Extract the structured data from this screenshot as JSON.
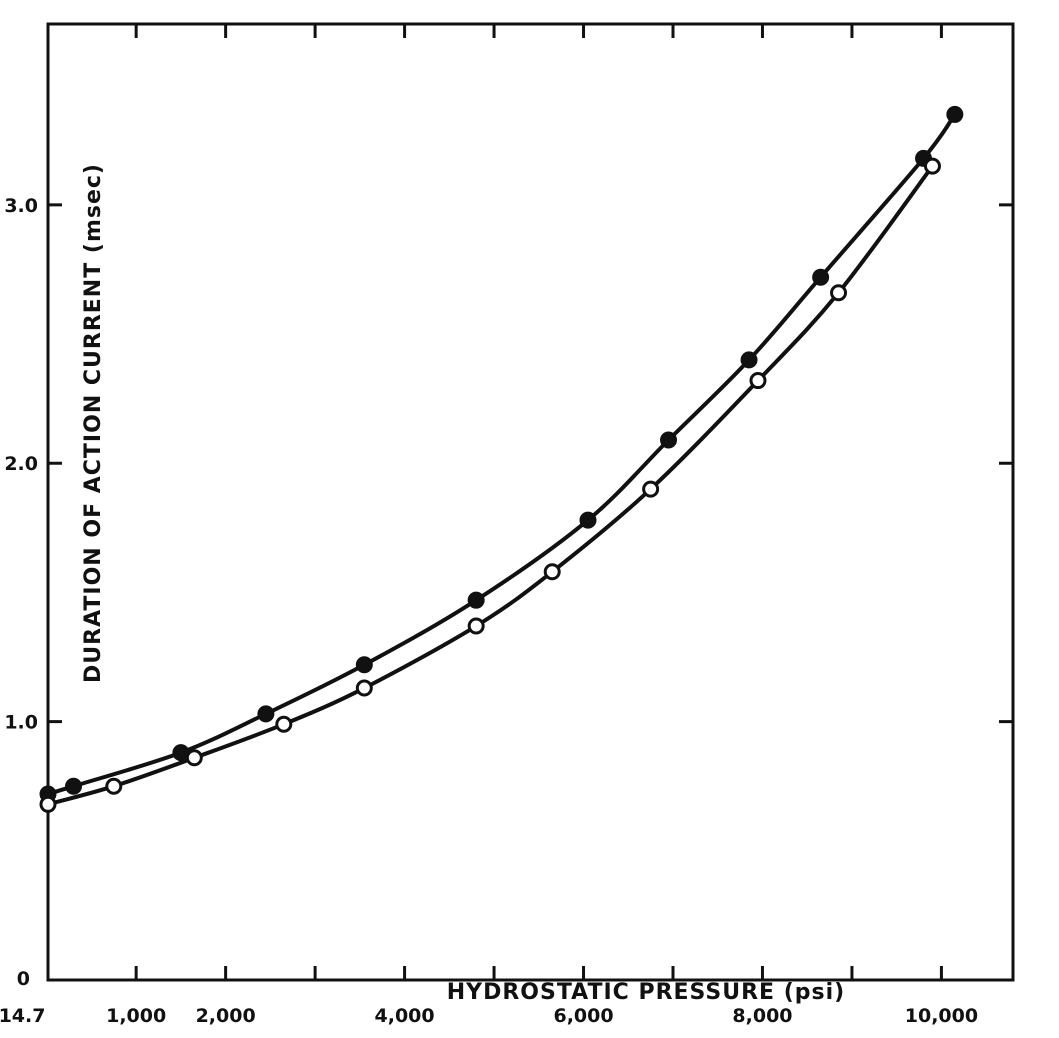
{
  "chart_data": {
    "type": "line",
    "title": "",
    "xlabel": "HYDROSTATIC PRESSURE (psi)",
    "ylabel": "DURATION OF ACTION CURRENT (msec)",
    "xlim": [
      14.7,
      10800
    ],
    "ylim": [
      0,
      3.7
    ],
    "grid": false,
    "x_ticks": [
      {
        "value": 14.7,
        "label": "14.7"
      },
      {
        "value": 1000,
        "label": "1,000"
      },
      {
        "value": 2000,
        "label": "2,000"
      },
      {
        "value": 4000,
        "label": "4,000"
      },
      {
        "value": 6000,
        "label": "6,000"
      },
      {
        "value": 8000,
        "label": "8,000"
      },
      {
        "value": 10000,
        "label": "10,000"
      }
    ],
    "x_minor_ticks": [
      1000,
      2000,
      3000,
      4000,
      5000,
      6000,
      7000,
      8000,
      9000,
      10000
    ],
    "y_ticks": [
      {
        "value": 0,
        "label": "0"
      },
      {
        "value": 1.0,
        "label": "1.0"
      },
      {
        "value": 2.0,
        "label": "2.0"
      },
      {
        "value": 3.0,
        "label": "3.0"
      }
    ],
    "series": [
      {
        "marker": "filled-circle",
        "points": [
          {
            "x": 14.7,
            "y": 0.72
          },
          {
            "x": 300,
            "y": 0.75
          },
          {
            "x": 1500,
            "y": 0.88
          },
          {
            "x": 2450,
            "y": 1.03
          },
          {
            "x": 3550,
            "y": 1.22
          },
          {
            "x": 4800,
            "y": 1.47
          },
          {
            "x": 6050,
            "y": 1.78
          },
          {
            "x": 6950,
            "y": 2.09
          },
          {
            "x": 7850,
            "y": 2.4
          },
          {
            "x": 8650,
            "y": 2.72
          },
          {
            "x": 9800,
            "y": 3.18
          },
          {
            "x": 10150,
            "y": 3.35
          }
        ]
      },
      {
        "marker": "open-circle",
        "points": [
          {
            "x": 14.7,
            "y": 0.68
          },
          {
            "x": 750,
            "y": 0.75
          },
          {
            "x": 1650,
            "y": 0.86
          },
          {
            "x": 2650,
            "y": 0.99
          },
          {
            "x": 3550,
            "y": 1.13
          },
          {
            "x": 4800,
            "y": 1.37
          },
          {
            "x": 5650,
            "y": 1.58
          },
          {
            "x": 6750,
            "y": 1.9
          },
          {
            "x": 7950,
            "y": 2.32
          },
          {
            "x": 8850,
            "y": 2.66
          },
          {
            "x": 9900,
            "y": 3.15
          }
        ]
      }
    ]
  }
}
